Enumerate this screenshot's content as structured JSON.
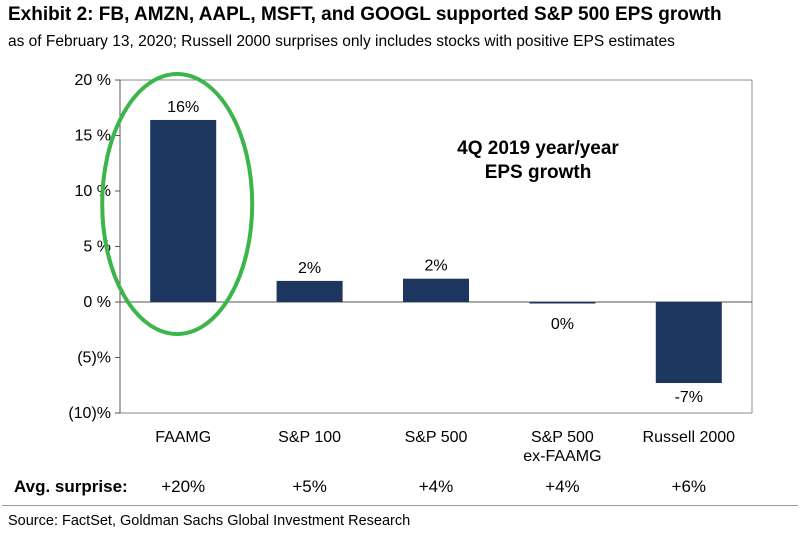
{
  "header": {
    "title": "Exhibit 2: FB, AMZN, AAPL, MSFT, and GOOGL supported S&P 500 EPS growth",
    "subtitle": "as of February 13, 2020; Russell 2000 surprises only includes stocks with positive EPS estimates"
  },
  "chart_data": {
    "type": "bar",
    "annotation": [
      "4Q 2019 year/year",
      "EPS growth"
    ],
    "categories": [
      [
        "FAAMG"
      ],
      [
        "S&P 100"
      ],
      [
        "S&P 500"
      ],
      [
        "S&P 500",
        "ex-FAAMG"
      ],
      [
        "Russell 2000"
      ]
    ],
    "values": [
      16.4,
      1.9,
      2.1,
      -0.1,
      -7.3
    ],
    "data_labels": [
      "16%",
      "2%",
      "2%",
      "0%",
      "-7%"
    ],
    "ylim": [
      -10,
      20
    ],
    "yticks": [
      20,
      15,
      10,
      5,
      0,
      -5,
      -10
    ],
    "ytick_labels": [
      "20 %",
      "15 %",
      "10 %",
      "5 %",
      "0 %",
      "(5)%",
      "(10)%"
    ],
    "bar_color": "#1c3660",
    "highlight_color": "#3cb54a",
    "grid": false
  },
  "surprise": {
    "label": "Avg. surprise:",
    "values": [
      "+20%",
      "+5%",
      "+4%",
      "+4%",
      "+6%"
    ]
  },
  "source": "Source: FactSet, Goldman Sachs Global Investment Research"
}
